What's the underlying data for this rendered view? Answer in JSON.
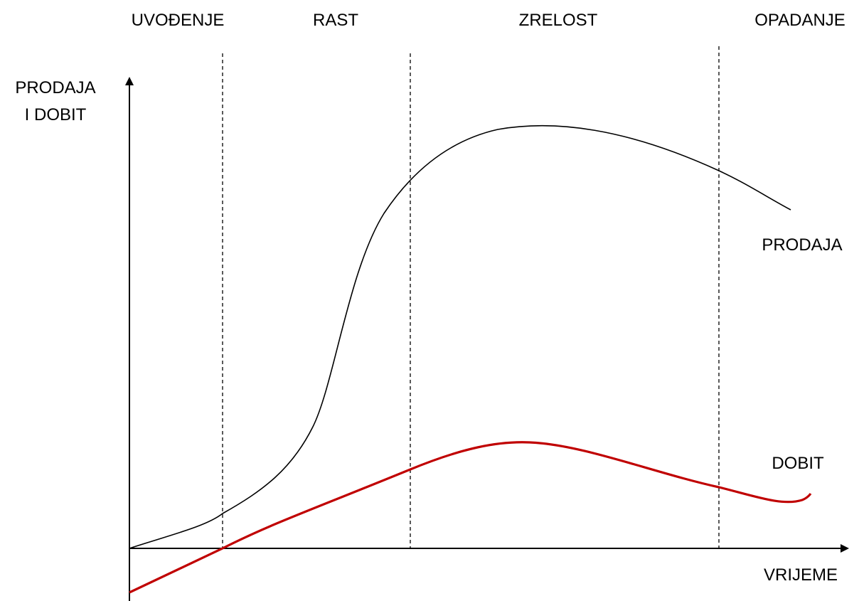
{
  "stages": [
    "UVOĐENJE",
    "RAST",
    "ZRELOST",
    "OPADANJE"
  ],
  "axes": {
    "y_label": [
      "PRODAJA",
      "I DOBIT"
    ],
    "x_label": "VRIJEME"
  },
  "curves": {
    "sales": "PRODAJA",
    "profit": "DOBIT"
  }
}
